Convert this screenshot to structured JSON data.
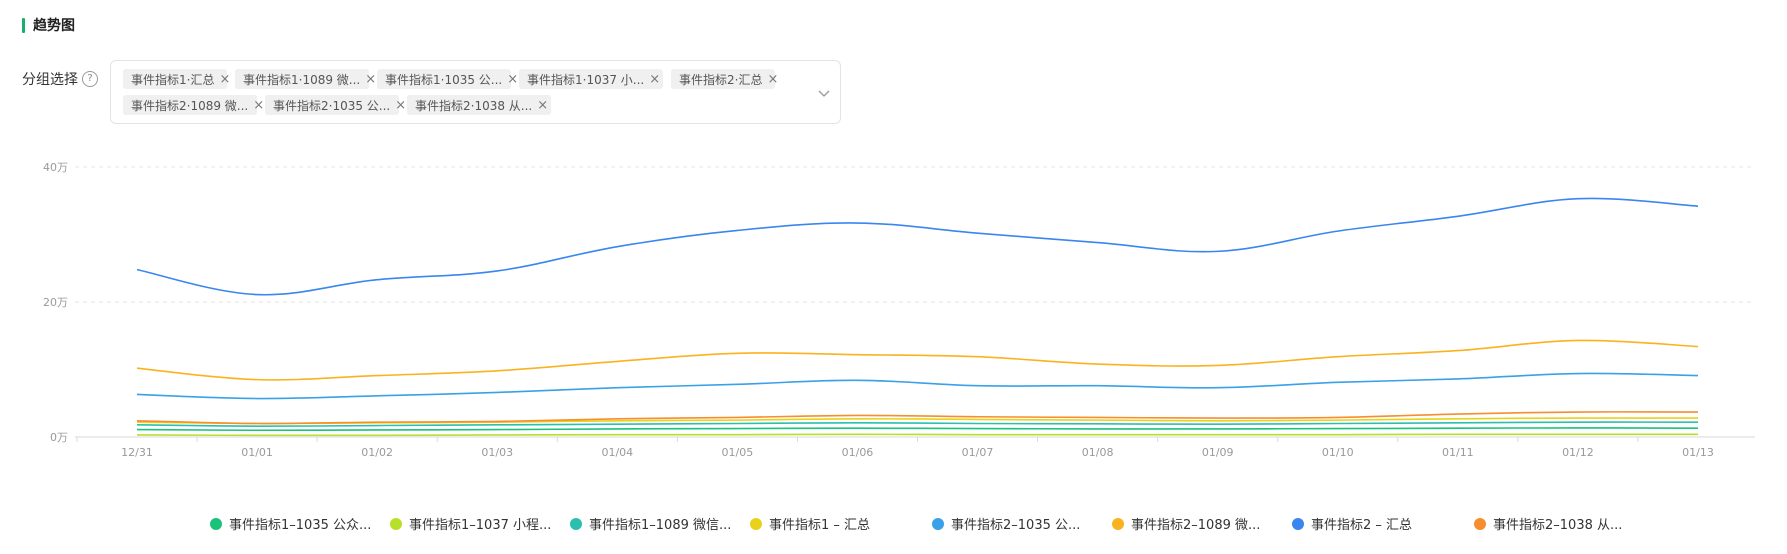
{
  "header": {
    "title": "趋势图"
  },
  "group_select": {
    "label": "分组选择",
    "help": "?",
    "tags": [
      "事件指标1·汇总",
      "事件指标1·1089 微...",
      "事件指标1·1035 公...",
      "事件指标1·1037 小...",
      "事件指标2·汇总",
      "事件指标2·1089 微...",
      "事件指标2·1035 公...",
      "事件指标2·1038 从..."
    ],
    "close_glyph": "×"
  },
  "chart_data": {
    "type": "line",
    "title": "",
    "xlabel": "",
    "ylabel": "",
    "categories": [
      "12/31",
      "01/01",
      "01/02",
      "01/03",
      "01/04",
      "01/05",
      "01/06",
      "01/07",
      "01/08",
      "01/09",
      "01/10",
      "01/11",
      "01/12",
      "01/13"
    ],
    "y_ticks": [
      {
        "value": 0,
        "label": "0万"
      },
      {
        "value": 200000,
        "label": "20万"
      },
      {
        "value": 400000,
        "label": "40万"
      }
    ],
    "ylim": [
      0,
      400000
    ],
    "grid": true,
    "legend_position": "bottom",
    "series": [
      {
        "name": "事件指标1–1035 公众...",
        "color": "#1ac27a",
        "values": [
          11000,
          10000,
          10500,
          11000,
          12000,
          12500,
          13000,
          12500,
          12000,
          12000,
          12500,
          13000,
          13500,
          13000
        ]
      },
      {
        "name": "事件指标1–1037 小程...",
        "color": "#b7e02b",
        "values": [
          3000,
          2500,
          2500,
          3000,
          3500,
          3500,
          4000,
          3500,
          3500,
          3500,
          3500,
          4000,
          4000,
          4000
        ]
      },
      {
        "name": "事件指标1–1089 微信...",
        "color": "#2bbfb0",
        "values": [
          18000,
          16000,
          17000,
          18000,
          19000,
          20000,
          21000,
          20000,
          19500,
          19000,
          20000,
          21000,
          22000,
          22000
        ]
      },
      {
        "name": "事件指标1 – 汇总",
        "color": "#e8d21a",
        "values": [
          22000,
          20000,
          21000,
          22000,
          24000,
          25000,
          27000,
          26000,
          25000,
          24000,
          25000,
          27000,
          28000,
          28000
        ]
      },
      {
        "name": "事件指标2–1035 公...",
        "color": "#3aa0e8",
        "values": [
          63000,
          57000,
          61000,
          66000,
          73000,
          78000,
          84000,
          76000,
          76000,
          73000,
          81000,
          86000,
          94000,
          91000
        ]
      },
      {
        "name": "事件指标2–1089 微...",
        "color": "#fab21e",
        "values": [
          102000,
          85000,
          91000,
          98000,
          112000,
          124000,
          122000,
          119000,
          108000,
          106000,
          119000,
          128000,
          143000,
          134000
        ]
      },
      {
        "name": "事件指标2 – 汇总",
        "color": "#3a86f0",
        "values": [
          248000,
          211000,
          233000,
          246000,
          282000,
          306000,
          317000,
          302000,
          288000,
          275000,
          305000,
          327000,
          353000,
          342000
        ]
      },
      {
        "name": "事件指标2–1038 从...",
        "color": "#f78d2e",
        "values": [
          24000,
          20000,
          22000,
          23000,
          27000,
          29000,
          32000,
          30000,
          29000,
          28000,
          29000,
          34000,
          37000,
          37000
        ]
      }
    ]
  }
}
